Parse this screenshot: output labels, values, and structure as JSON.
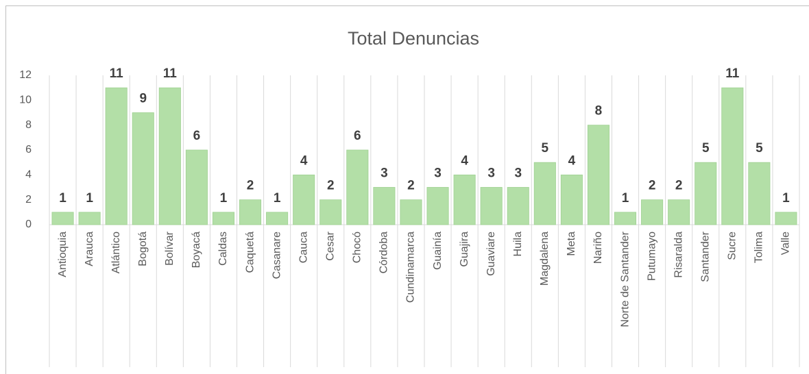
{
  "chart_data": {
    "type": "bar",
    "title": "Total Denuncias",
    "categories": [
      "Antioquia",
      "Arauca",
      "Atlántico",
      "Bogotá",
      "Bolívar",
      "Boyacá",
      "Caldas",
      "Caquetá",
      "Casanare",
      "Cauca",
      "Cesar",
      "Chocó",
      "Córdoba",
      "Cundinamarca",
      "Guainía",
      "Guajira",
      "Guaviare",
      "Huila",
      "Magdalena",
      "Meta",
      "Nariño",
      "Norte de Santander",
      "Putumayo",
      "Risaralda",
      "Santander",
      "Sucre",
      "Tolima",
      "Valle"
    ],
    "values": [
      1,
      1,
      11,
      9,
      11,
      6,
      1,
      2,
      1,
      4,
      2,
      6,
      3,
      2,
      3,
      4,
      3,
      3,
      5,
      4,
      8,
      1,
      2,
      2,
      5,
      11,
      5,
      1
    ],
    "color": "#b3dfa7",
    "ylim": [
      0,
      12
    ],
    "yticks": [
      0,
      2,
      4,
      6,
      8,
      10,
      12
    ],
    "grid": false
  }
}
